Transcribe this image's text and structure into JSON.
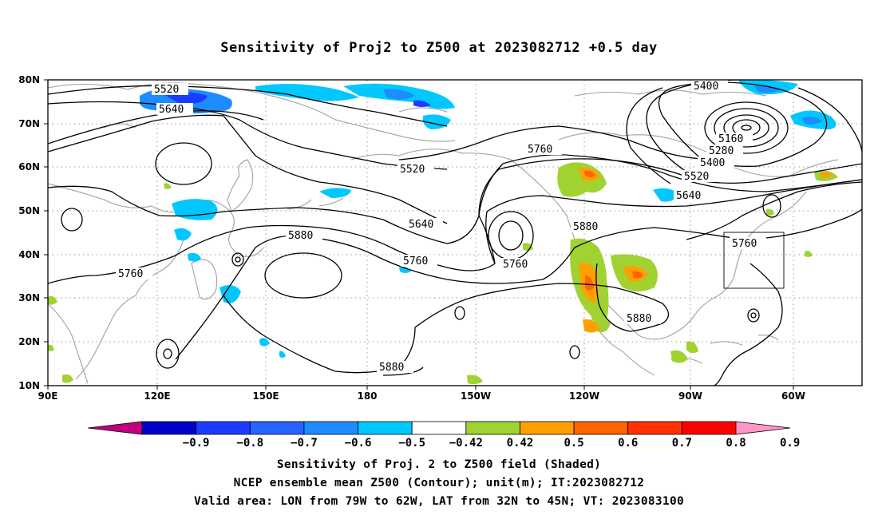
{
  "title": "Sensitivity of Proj2 to Z500 at 2023082712 +0.5 day",
  "map": {
    "lat_ticks": [
      "80N",
      "70N",
      "60N",
      "50N",
      "40N",
      "30N",
      "20N",
      "10N"
    ],
    "lon_ticks": [
      "90E",
      "120E",
      "150E",
      "180",
      "150W",
      "120W",
      "90W",
      "60W"
    ],
    "contour_labels": [
      {
        "text": "5520"
      },
      {
        "text": "5640"
      },
      {
        "text": "5520"
      },
      {
        "text": "5640"
      },
      {
        "text": "5760"
      },
      {
        "text": "5760"
      },
      {
        "text": "5880"
      },
      {
        "text": "5760"
      },
      {
        "text": "5760"
      },
      {
        "text": "5880"
      },
      {
        "text": "5880"
      },
      {
        "text": "5880"
      },
      {
        "text": "5400"
      },
      {
        "text": "5160"
      },
      {
        "text": "5280"
      },
      {
        "text": "5400"
      },
      {
        "text": "5520"
      },
      {
        "text": "5640"
      },
      {
        "text": "5760"
      }
    ],
    "valid_area": {
      "lon": [
        -79,
        -62
      ],
      "lat": [
        32,
        45
      ]
    }
  },
  "colorbar": {
    "labels": [
      "-0.9",
      "-0.8",
      "-0.7",
      "-0.6",
      "-0.5",
      "-0.42",
      "0.42",
      "0.5",
      "0.6",
      "0.7",
      "0.8",
      "0.9"
    ],
    "colors": [
      "#c0007f",
      "#0000c8",
      "#1e3cff",
      "#2864ff",
      "#1e8cff",
      "#00c8ff",
      "#ffffff",
      "#a0d232",
      "#ffa000",
      "#ff6400",
      "#ff3200",
      "#ff0000",
      "#ff96c8"
    ]
  },
  "footer": {
    "line1": "Sensitivity of Proj. 2 to Z500 field (Shaded)",
    "line2": "NCEP ensemble mean Z500 (Contour); unit(m); IT:2023082712",
    "line3": "Valid area: LON from 79W to 62W, LAT from 32N to 45N; VT: 2023083100"
  }
}
